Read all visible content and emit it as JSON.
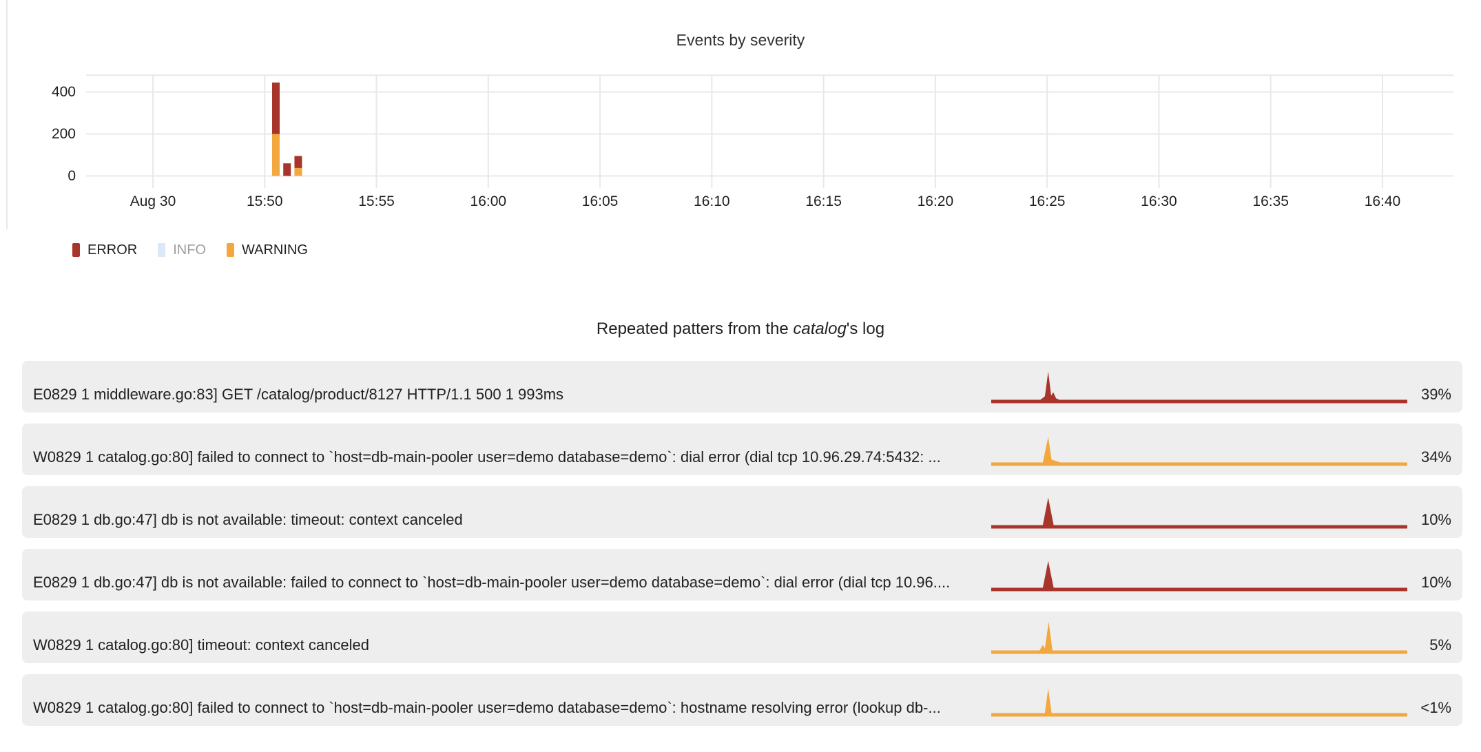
{
  "chart": {
    "title": "Events by severity",
    "y_tick_labels": [
      "400",
      "200",
      "0"
    ],
    "x_tick_labels": [
      "Aug 30",
      "15:50",
      "15:55",
      "16:00",
      "16:05",
      "16:10",
      "16:15",
      "16:20",
      "16:25",
      "16:30",
      "16:35",
      "16:40"
    ]
  },
  "chart_data": {
    "type": "bar",
    "stacked": true,
    "title": "Events by severity",
    "x": [
      "15:50:30",
      "15:51:00",
      "15:51:30"
    ],
    "x_offsets_min_from_1550": [
      0.5,
      1.0,
      1.5
    ],
    "series": [
      {
        "name": "ERROR",
        "values": [
          245,
          60,
          57
        ]
      },
      {
        "name": "WARNING",
        "values": [
          200,
          0,
          38
        ]
      },
      {
        "name": "INFO",
        "values": [
          0,
          0,
          0
        ]
      }
    ],
    "hidden_series": [
      "INFO"
    ],
    "x_axis_ticks": [
      "Aug 30",
      "15:50",
      "15:55",
      "16:00",
      "16:05",
      "16:10",
      "16:15",
      "16:20",
      "16:25",
      "16:30",
      "16:35",
      "16:40"
    ],
    "y_ticks": [
      0,
      200,
      400
    ],
    "ylim": [
      0,
      480
    ],
    "grid": true,
    "legend_position": "bottom-left"
  },
  "palette": {
    "error": "#A8352B",
    "warning": "#F2A73F",
    "info": "#DBE9F7",
    "muted_text": "#9E9E9E",
    "row_bg": "#EEEEEE",
    "gridline": "#E8E8E8"
  },
  "legend": {
    "items": [
      {
        "label": "ERROR",
        "severity": "error",
        "muted": false
      },
      {
        "label": "INFO",
        "severity": "info",
        "muted": true
      },
      {
        "label": "WARNING",
        "severity": "warning",
        "muted": false
      }
    ]
  },
  "patterns": {
    "title_prefix": "Repeated patters from the ",
    "title_italic": "catalog",
    "title_suffix": "'s log"
  },
  "rows": [
    {
      "message": "E0829 1 middleware.go:83] GET /catalog/product/8127 HTTP/1.1 500 1 993ms",
      "percent": "39%",
      "severity": "error",
      "sparkline_points": [
        [
          0,
          0
        ],
        [
          11.8,
          0
        ],
        [
          12.9,
          5
        ],
        [
          13.7,
          41
        ],
        [
          14.4,
          6
        ],
        [
          14.9,
          11
        ],
        [
          15.6,
          2
        ],
        [
          16.4,
          0
        ],
        [
          100,
          0
        ]
      ]
    },
    {
      "message": "W0829 1 catalog.go:80] failed to connect to `host=db-main-pooler user=demo database=demo`: dial error (dial tcp 10.96.29.74:5432: ...",
      "percent": "34%",
      "severity": "warning",
      "sparkline_points": [
        [
          0,
          0
        ],
        [
          12.4,
          0
        ],
        [
          13.7,
          37
        ],
        [
          14.5,
          4
        ],
        [
          15.6,
          2
        ],
        [
          16.6,
          0
        ],
        [
          100,
          0
        ]
      ]
    },
    {
      "message": "E0829 1 db.go:47] db is not available: timeout: context canceled",
      "percent": "10%",
      "severity": "error",
      "sparkline_points": [
        [
          0,
          0
        ],
        [
          12.4,
          0
        ],
        [
          13.7,
          40
        ],
        [
          15.0,
          0
        ],
        [
          100,
          0
        ]
      ]
    },
    {
      "message": "E0829 1 db.go:47] db is not available: failed to connect to `host=db-main-pooler user=demo database=demo`: dial error (dial tcp 10.96....",
      "percent": "10%",
      "severity": "error",
      "sparkline_points": [
        [
          0,
          0
        ],
        [
          12.4,
          0
        ],
        [
          13.7,
          39
        ],
        [
          15.0,
          0
        ],
        [
          100,
          0
        ]
      ]
    },
    {
      "message": "W0829 1 catalog.go:80] timeout: context canceled",
      "percent": "5%",
      "severity": "warning",
      "sparkline_points": [
        [
          0,
          0
        ],
        [
          11.6,
          0
        ],
        [
          12.4,
          8
        ],
        [
          12.9,
          3
        ],
        [
          13.8,
          42
        ],
        [
          14.7,
          0
        ],
        [
          100,
          0
        ]
      ]
    },
    {
      "message": "W0829 1 catalog.go:80] failed to connect to `host=db-main-pooler user=demo database=demo`: hostname resolving error (lookup db-...",
      "percent": "<1%",
      "severity": "warning",
      "sparkline_points": [
        [
          0,
          0
        ],
        [
          12.9,
          0
        ],
        [
          13.7,
          36
        ],
        [
          14.5,
          0
        ],
        [
          100,
          0
        ]
      ]
    }
  ]
}
